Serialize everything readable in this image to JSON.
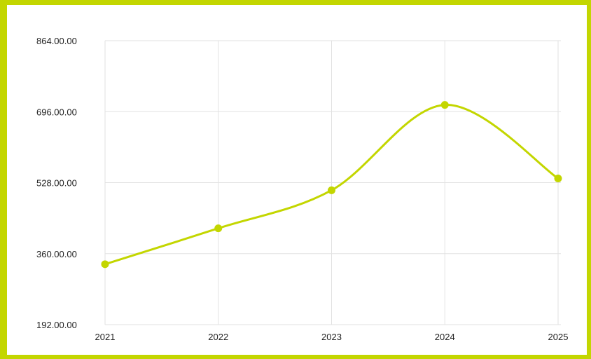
{
  "chart_data": {
    "type": "line",
    "title": "",
    "xlabel": "",
    "ylabel": "",
    "categories": [
      "2021",
      "2022",
      "2023",
      "2024",
      "2025"
    ],
    "series": [
      {
        "values": [
          335,
          420,
          510,
          712,
          538
        ]
      }
    ],
    "ylim": [
      192,
      864
    ],
    "y_ticks": [
      192,
      360,
      528,
      696,
      864
    ],
    "y_tick_labels": [
      "192.00.00",
      "360.00.00",
      "528.00.00",
      "696.00.00",
      "864.00.00"
    ],
    "grid": true,
    "smooth": true,
    "colors": {
      "series": "#c3d600",
      "frame": "#c3d600",
      "grid": "#e2e2e2"
    }
  }
}
